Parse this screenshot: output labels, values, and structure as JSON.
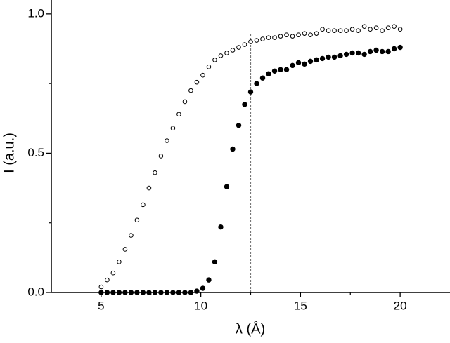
{
  "chart_data": {
    "type": "scatter",
    "x_label": "λ (Å)",
    "y_label": "I (a.u.)",
    "xlim": [
      2.5,
      22.5
    ],
    "ylim": [
      0,
      1.05
    ],
    "xticks": [
      5,
      10,
      15,
      20
    ],
    "xminorticks": [
      7.5,
      12.5,
      17.5
    ],
    "yticks": [
      {
        "value": 0,
        "label": "0.0"
      },
      0.5,
      {
        "value": 1,
        "label": "1.0"
      }
    ],
    "yminorticks": [
      0.25,
      0.75
    ],
    "grid": false,
    "reference_line": {
      "x": 12.5,
      "y_top": 0.93,
      "color": "#777777",
      "dashed": true
    },
    "x": [
      5,
      5.3,
      5.6,
      5.9,
      6.2,
      6.5,
      6.8,
      7.1,
      7.4,
      7.7,
      8,
      8.3,
      8.6,
      8.9,
      9.2,
      9.5,
      9.8,
      10.1,
      10.4,
      10.7,
      11,
      11.3,
      11.6,
      11.9,
      12.2,
      12.5,
      12.8,
      13.1,
      13.4,
      13.7,
      14,
      14.3,
      14.6,
      14.9,
      15.2,
      15.5,
      15.8,
      16.1,
      16.4,
      16.7,
      17,
      17.3,
      17.6,
      17.9,
      18.2,
      18.5,
      18.8,
      19.1,
      19.4,
      19.7,
      20
    ],
    "series": [
      {
        "color": "#000000",
        "marker": "open",
        "values": [
          0.02,
          0.045,
          0.07,
          0.11,
          0.155,
          0.205,
          0.26,
          0.315,
          0.375,
          0.43,
          0.49,
          0.545,
          0.59,
          0.64,
          0.685,
          0.725,
          0.755,
          0.78,
          0.81,
          0.835,
          0.85,
          0.86,
          0.87,
          0.88,
          0.89,
          0.9,
          0.905,
          0.91,
          0.915,
          0.915,
          0.92,
          0.925,
          0.92,
          0.925,
          0.93,
          0.925,
          0.93,
          0.945,
          0.94,
          0.94,
          0.94,
          0.94,
          0.945,
          0.94,
          0.955,
          0.945,
          0.95,
          0.94,
          0.95,
          0.955,
          0.945
        ]
      },
      {
        "color": "#000000",
        "marker": "filled",
        "values": [
          0,
          0,
          0,
          0,
          0,
          0,
          0,
          0,
          0,
          0,
          0,
          0,
          0,
          0,
          0,
          0,
          0.005,
          0.015,
          0.045,
          0.11,
          0.235,
          0.38,
          0.515,
          0.6,
          0.675,
          0.72,
          0.75,
          0.77,
          0.785,
          0.795,
          0.8,
          0.8,
          0.815,
          0.825,
          0.82,
          0.83,
          0.835,
          0.84,
          0.845,
          0.845,
          0.85,
          0.855,
          0.86,
          0.86,
          0.855,
          0.865,
          0.87,
          0.865,
          0.865,
          0.875,
          0.88
        ]
      }
    ]
  }
}
